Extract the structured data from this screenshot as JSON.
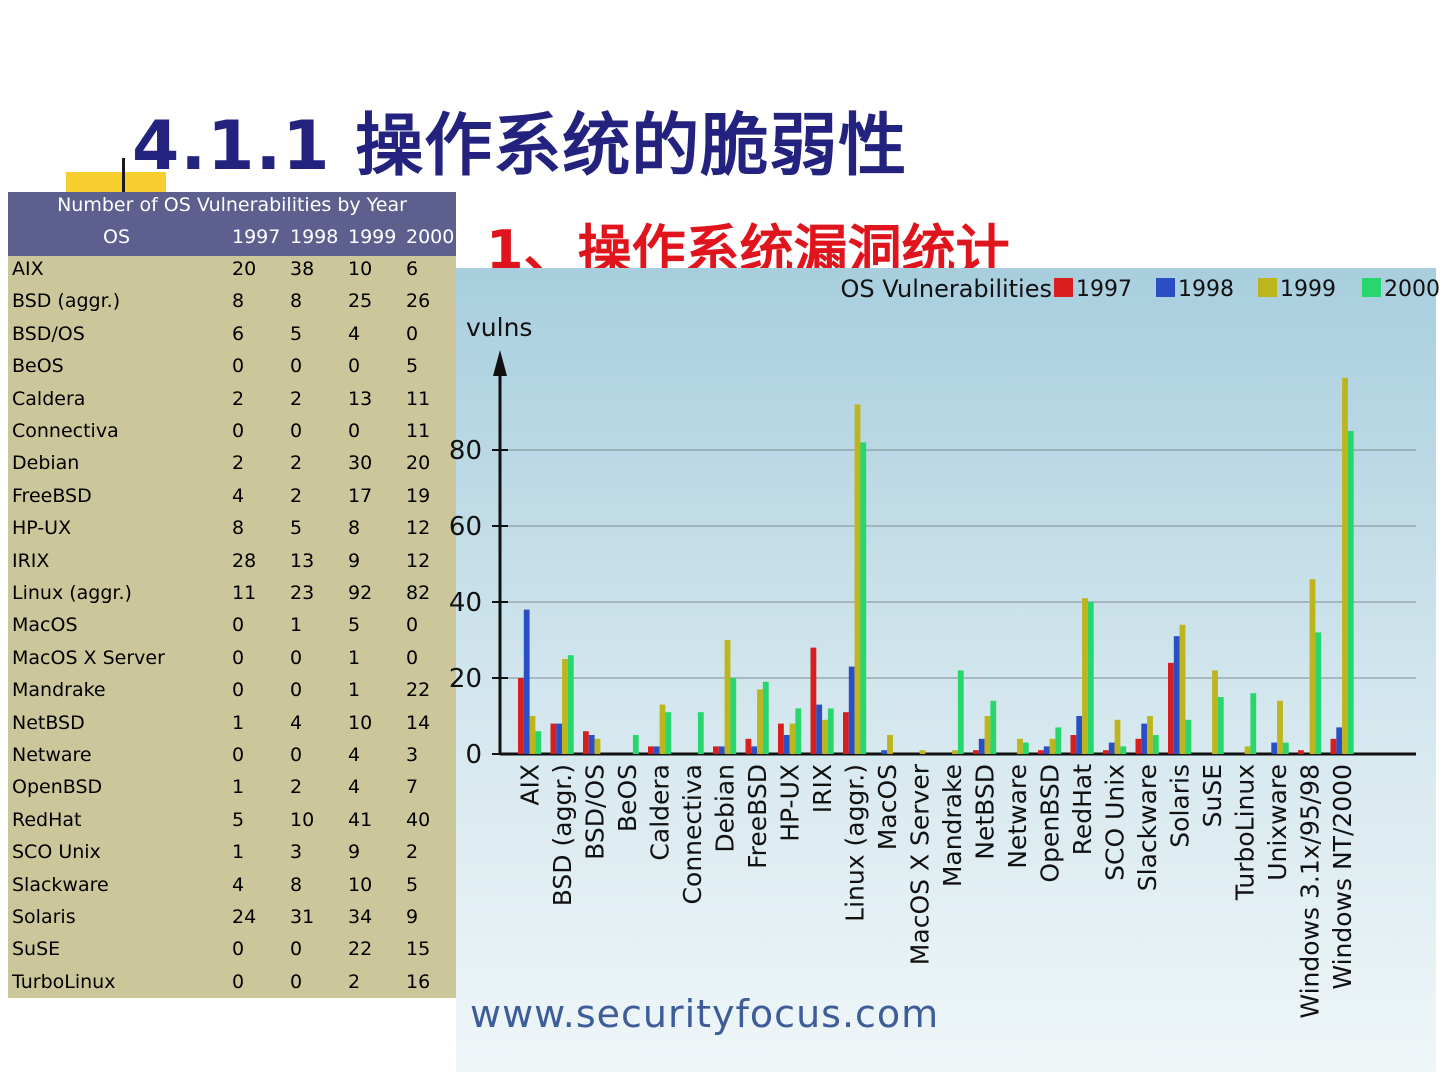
{
  "slide": {
    "title": "4.1.1 操作系统的脆弱性",
    "subtitle": "1、操作系统漏洞统计",
    "source_url": "www.securityfocus.com"
  },
  "table": {
    "caption": "Number of OS Vulnerabilities by Year",
    "headers": [
      "OS",
      "1997",
      "1998",
      "1999",
      "2000"
    ],
    "rows": [
      [
        "AIX",
        "20",
        "38",
        "10",
        "6"
      ],
      [
        "BSD (aggr.)",
        "8",
        "8",
        "25",
        "26"
      ],
      [
        "BSD/OS",
        "6",
        "5",
        "4",
        "0"
      ],
      [
        "BeOS",
        "0",
        "0",
        "0",
        "5"
      ],
      [
        "Caldera",
        "2",
        "2",
        "13",
        "11"
      ],
      [
        "Connectiva",
        "0",
        "0",
        "0",
        "11"
      ],
      [
        "Debian",
        "2",
        "2",
        "30",
        "20"
      ],
      [
        "FreeBSD",
        "4",
        "2",
        "17",
        "19"
      ],
      [
        "HP-UX",
        "8",
        "5",
        "8",
        "12"
      ],
      [
        "IRIX",
        "28",
        "13",
        "9",
        "12"
      ],
      [
        "Linux (aggr.)",
        "11",
        "23",
        "92",
        "82"
      ],
      [
        "MacOS",
        "0",
        "1",
        "5",
        "0"
      ],
      [
        "MacOS X Server",
        "0",
        "0",
        "1",
        "0"
      ],
      [
        "Mandrake",
        "0",
        "0",
        "1",
        "22"
      ],
      [
        "NetBSD",
        "1",
        "4",
        "10",
        "14"
      ],
      [
        "Netware",
        "0",
        "0",
        "4",
        "3"
      ],
      [
        "OpenBSD",
        "1",
        "2",
        "4",
        "7"
      ],
      [
        "RedHat",
        "5",
        "10",
        "41",
        "40"
      ],
      [
        "SCO Unix",
        "1",
        "3",
        "9",
        "2"
      ],
      [
        "Slackware",
        "4",
        "8",
        "10",
        "5"
      ],
      [
        "Solaris",
        "24",
        "31",
        "34",
        "9"
      ],
      [
        "SuSE",
        "0",
        "0",
        "22",
        "15"
      ],
      [
        "TurboLinux",
        "0",
        "0",
        "2",
        "16"
      ]
    ]
  },
  "chart_data": {
    "type": "bar",
    "title": "OS Vulnerabilities",
    "ylabel": "vulns",
    "xlabel": "",
    "ylim": [
      0,
      100
    ],
    "yticks": [
      0,
      20,
      40,
      60,
      80
    ],
    "ytick_labels": [
      "0",
      "20",
      "40",
      "60",
      "80"
    ],
    "grid": true,
    "legend_position": "top-right",
    "categories": [
      "AIX",
      "BSD (aggr.)",
      "BSD/OS",
      "BeOS",
      "Caldera",
      "Connectiva",
      "Debian",
      "FreeBSD",
      "HP-UX",
      "IRIX",
      "Linux (aggr.)",
      "MacOS",
      "MacOS X Server",
      "Mandrake",
      "NetBSD",
      "Netware",
      "OpenBSD",
      "RedHat",
      "SCO Unix",
      "Slackware",
      "Solaris",
      "SuSE",
      "TurboLinux",
      "Unixware",
      "Windows 3.1x/95/98",
      "Windows NT/2000"
    ],
    "series": [
      {
        "name": "1997",
        "color": "#d81e1e",
        "values": [
          20,
          8,
          6,
          0,
          2,
          0,
          2,
          4,
          8,
          28,
          11,
          0,
          0,
          0,
          1,
          0,
          1,
          5,
          1,
          4,
          24,
          0,
          0,
          0,
          1,
          4
        ]
      },
      {
        "name": "1998",
        "color": "#2a4fc4",
        "values": [
          38,
          8,
          5,
          0,
          2,
          0,
          2,
          2,
          5,
          13,
          23,
          1,
          0,
          0,
          4,
          0,
          2,
          10,
          3,
          8,
          31,
          0,
          0,
          3,
          0,
          7
        ]
      },
      {
        "name": "1999",
        "color": "#bdb51e",
        "values": [
          10,
          25,
          4,
          0,
          13,
          0,
          30,
          17,
          8,
          9,
          92,
          5,
          1,
          1,
          10,
          4,
          4,
          41,
          9,
          10,
          34,
          22,
          2,
          14,
          46,
          99
        ]
      },
      {
        "name": "2000",
        "color": "#27d66c",
        "values": [
          6,
          26,
          0,
          5,
          11,
          11,
          20,
          19,
          12,
          12,
          82,
          0,
          0,
          22,
          14,
          3,
          7,
          40,
          2,
          5,
          9,
          15,
          16,
          3,
          32,
          85
        ]
      }
    ]
  }
}
